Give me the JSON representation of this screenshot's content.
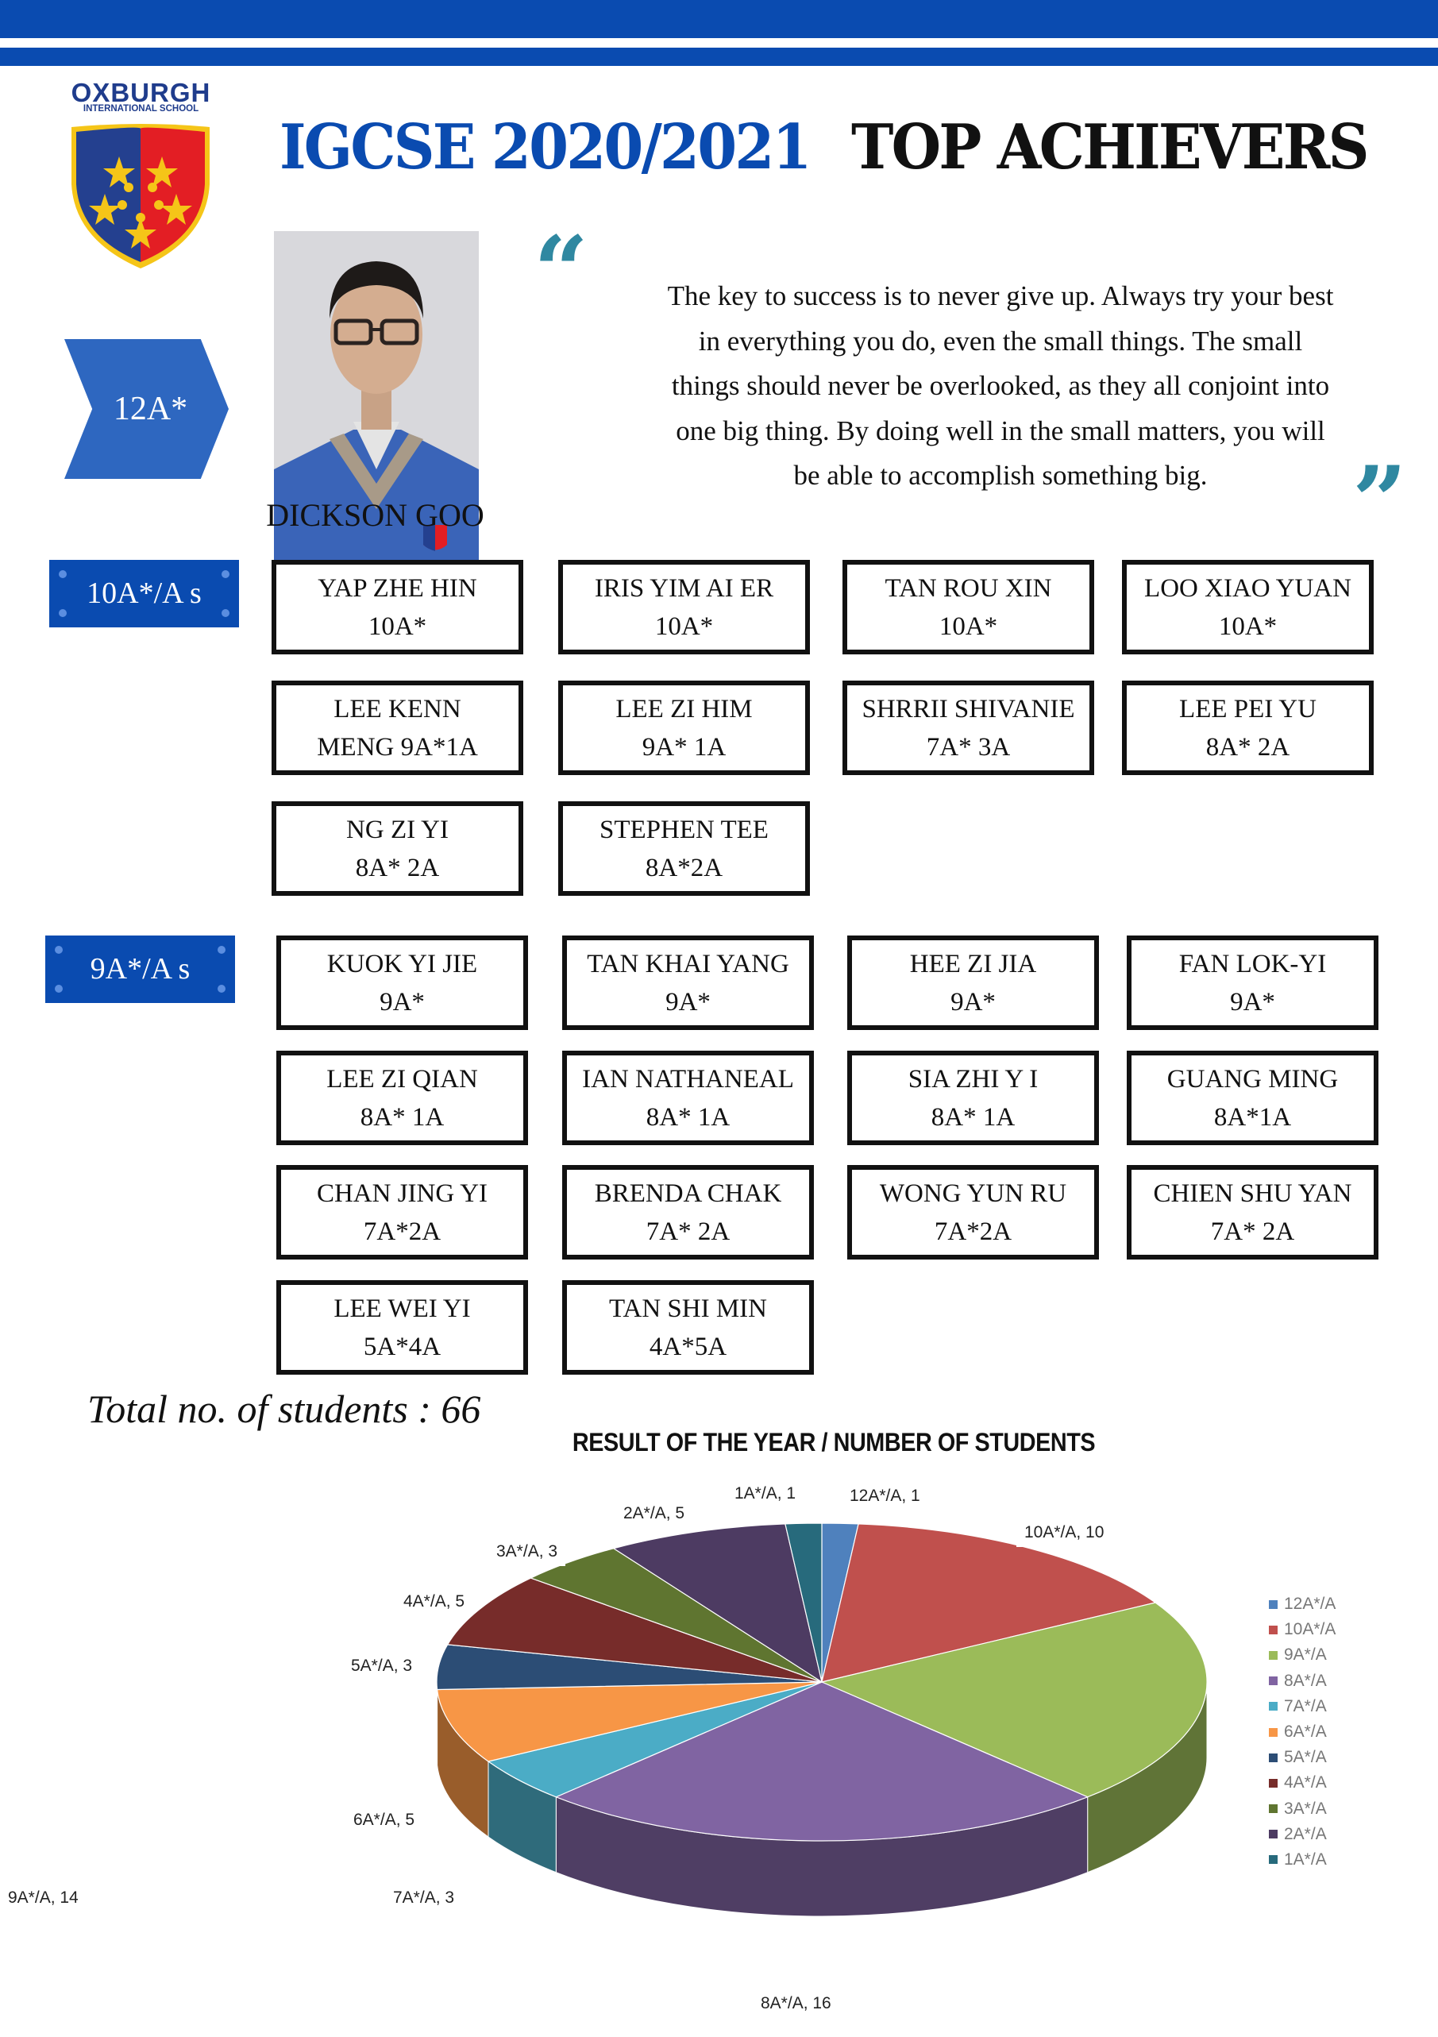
{
  "header": {
    "school_name": "OXBURGH",
    "school_subtitle": "INTERNATIONAL SCHOOL",
    "title_part1": "IGCSE 2020/2021",
    "title_part2": "TOP ACHIEVERS",
    "colors": {
      "brand_blue": "#0a4bb0",
      "quote_teal": "#2f88a1",
      "crest_red": "#e31e24",
      "crest_gold": "#f5c518"
    }
  },
  "top_achiever": {
    "grade_badge": "12A*",
    "name": "DICKSON GOO",
    "quote_open": "“",
    "quote_close": "”",
    "quote_lines": [
      "The key to success is to never give up. Always try your best",
      "in everything you do, even the small things. The small",
      "things should never be overlooked, as they all conjoint into",
      "one big thing. By doing well in the small matters, you will",
      "be able to accomplish something big."
    ]
  },
  "sections": [
    {
      "label": "10A*/A s",
      "students": [
        {
          "name": "YAP ZHE HIN",
          "grade": "10A*"
        },
        {
          "name": "IRIS YIM AI ER",
          "grade": "10A*"
        },
        {
          "name": "TAN ROU XIN",
          "grade": "10A*"
        },
        {
          "name": "LOO XIAO YUAN",
          "grade": "10A*"
        },
        {
          "name": "LEE KENN",
          "grade": "MENG 9A*1A"
        },
        {
          "name": "LEE ZI HIM",
          "grade": "9A* 1A"
        },
        {
          "name": "SHRRII SHIVANIE",
          "grade": "7A* 3A"
        },
        {
          "name": "LEE PEI YU",
          "grade": "8A* 2A"
        },
        {
          "name": "NG ZI YI",
          "grade": "8A* 2A"
        },
        {
          "name": "STEPHEN TEE",
          "grade": "8A*2A"
        }
      ]
    },
    {
      "label": "9A*/A s",
      "students": [
        {
          "name": "KUOK YI JIE",
          "grade": "9A*"
        },
        {
          "name": "TAN KHAI YANG",
          "grade": "9A*"
        },
        {
          "name": "HEE ZI JIA",
          "grade": "9A*"
        },
        {
          "name": "FAN LOK-YI",
          "grade": "9A*"
        },
        {
          "name": "LEE ZI QIAN",
          "grade": "8A* 1A"
        },
        {
          "name": "IAN NATHANEAL",
          "grade": "8A* 1A"
        },
        {
          "name": "SIA ZHI Y I",
          "grade": "8A* 1A"
        },
        {
          "name": "GUANG MING",
          "grade": "8A*1A"
        },
        {
          "name": "CHAN JING YI",
          "grade": "7A*2A"
        },
        {
          "name": "BRENDA CHAK",
          "grade": "7A* 2A"
        },
        {
          "name": "WONG YUN RU",
          "grade": "7A*2A"
        },
        {
          "name": "CHIEN SHU YAN",
          "grade": "7A* 2A"
        },
        {
          "name": "LEE WEI YI",
          "grade": "5A*4A"
        },
        {
          "name": "TAN SHI MIN",
          "grade": "4A*5A"
        }
      ]
    }
  ],
  "total": {
    "text": "Total no. of students : 66"
  },
  "chart_data": {
    "type": "pie",
    "style": "3d-exploded",
    "title": "RESULT OF THE YEAR / NUMBER OF STUDENTS",
    "categories": [
      "12A*/A",
      "10A*/A",
      "9A*/A",
      "8A*/A",
      "7A*/A",
      "6A*/A",
      "5A*/A",
      "4A*/A",
      "3A*/A",
      "2A*/A",
      "1A*/A"
    ],
    "values": [
      1,
      10,
      14,
      16,
      3,
      5,
      3,
      5,
      3,
      5,
      1
    ],
    "colors": [
      "#4f81bd",
      "#c0504d",
      "#9bbb59",
      "#8064a2",
      "#4bacc6",
      "#f79646",
      "#2c4d75",
      "#772c2a",
      "#5f7530",
      "#4d3b62",
      "#276a7c"
    ],
    "data_labels": [
      "12A*/A, 1",
      "10A*/A, 10",
      "9A*/A, 14",
      "8A*/A, 16",
      "7A*/A, 3",
      "6A*/A, 5",
      "5A*/A, 3",
      "4A*/A, 5",
      "3A*/A, 3",
      "2A*/A, 5",
      "1A*/A, 1"
    ],
    "legend_position": "right",
    "total": 66
  }
}
